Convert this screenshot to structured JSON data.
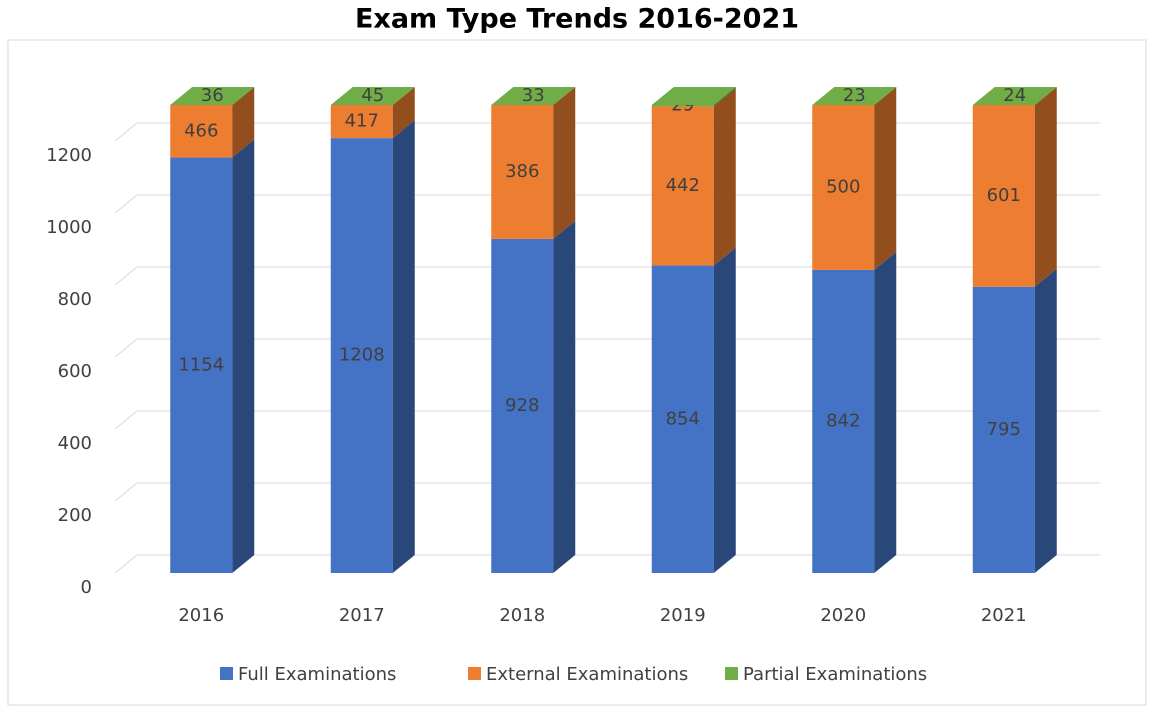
{
  "chart_data": {
    "type": "bar3d_stacked",
    "title": "Exam Type Trends 2016-2021",
    "categories": [
      "2016",
      "2017",
      "2018",
      "2019",
      "2020",
      "2021"
    ],
    "series": [
      {
        "name": "Full Examinations",
        "color": "#4472c4",
        "values": [
          1154,
          1208,
          928,
          854,
          842,
          795
        ]
      },
      {
        "name": "External Examinations",
        "color": "#ed7d31",
        "values": [
          466,
          417,
          386,
          442,
          500,
          601
        ]
      },
      {
        "name": "Partial Examinations",
        "color": "#70ad47",
        "values": [
          36,
          45,
          33,
          29,
          23,
          24
        ]
      }
    ],
    "ylim": [
      0,
      1300
    ],
    "yticks": [
      0,
      200,
      400,
      600,
      800,
      1000,
      1200
    ],
    "grid": true,
    "legend": "bottom"
  }
}
